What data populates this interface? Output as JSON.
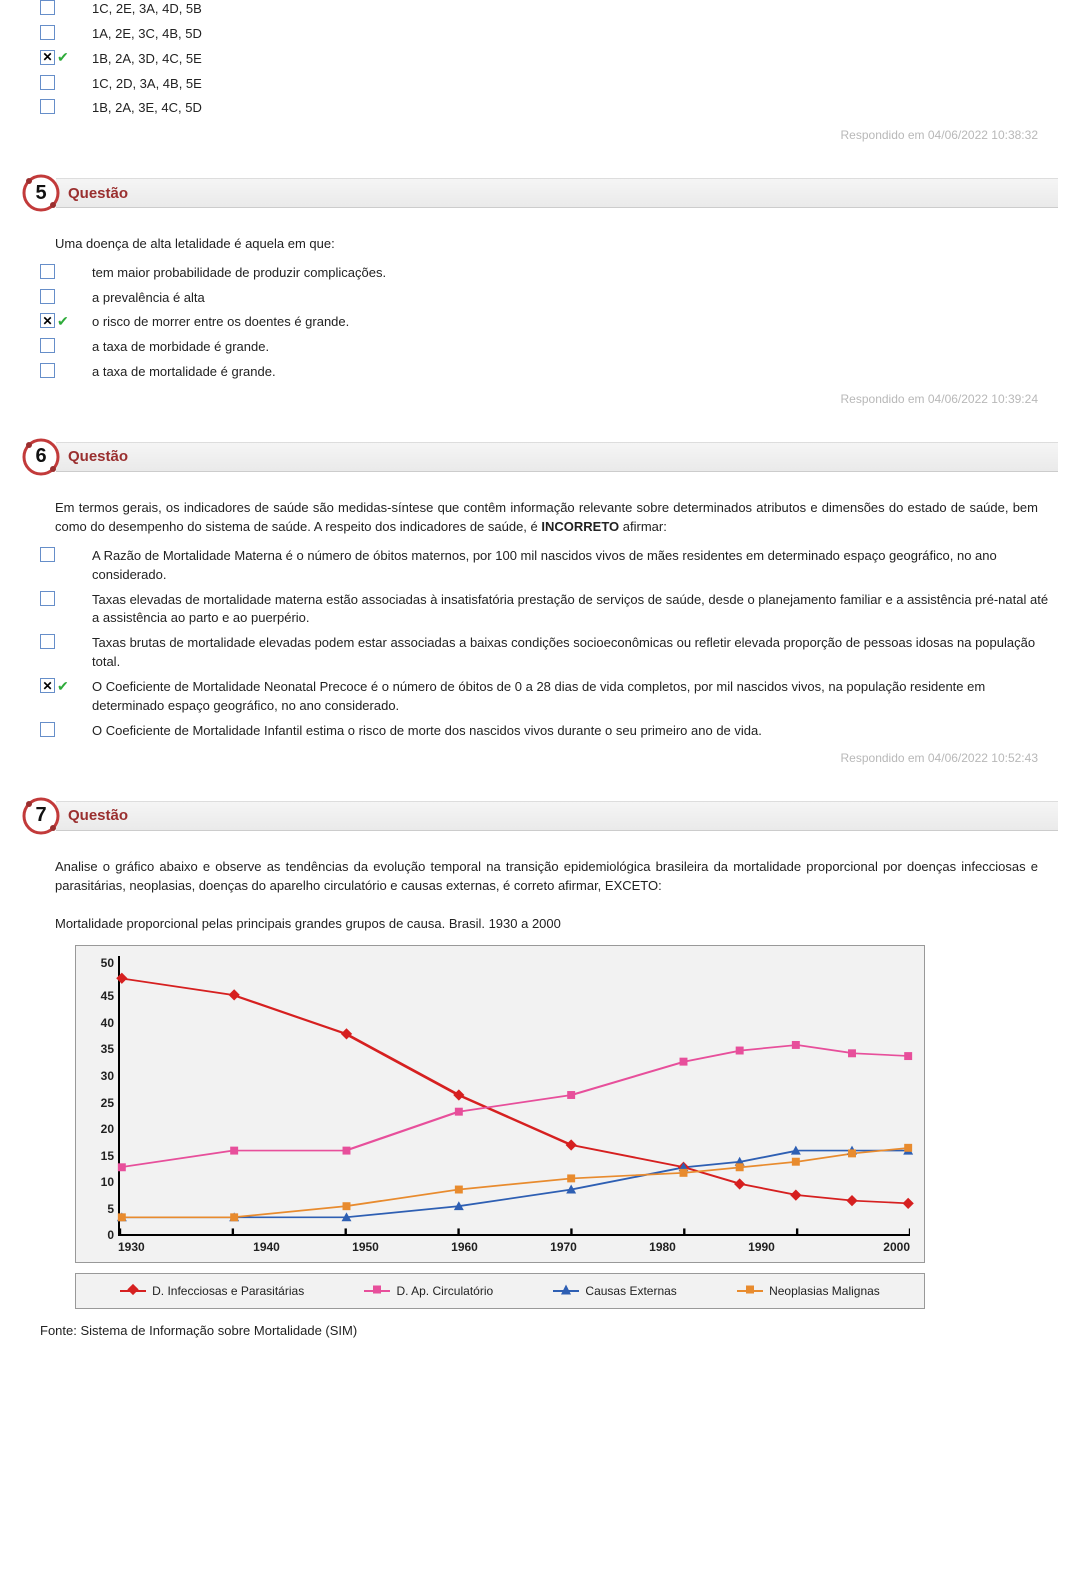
{
  "colors": {
    "checkbox_border": "#668ec9",
    "tick": "#2eab3a",
    "badge_ring": "#c23a3a",
    "badge_fill": "#ffffff",
    "badge_dots": "#9a2f2f",
    "bar_text": "#9a2f2f",
    "timestamp": "#b8b8b8",
    "chart_bg": "#f2f2f2",
    "series_red": "#d62020",
    "series_pink": "#e74f9b",
    "series_blue": "#2e5fb3",
    "series_orange": "#e88b2e"
  },
  "q4_tail": {
    "options": [
      {
        "text": "1C, 2E, 3A, 4D, 5B",
        "checked": false,
        "correct": false
      },
      {
        "text": "1A, 2E, 3C, 4B, 5D",
        "checked": false,
        "correct": false
      },
      {
        "text": "1B, 2A, 3D, 4C, 5E",
        "checked": true,
        "correct": true
      },
      {
        "text": "1C, 2D, 3A, 4B, 5E",
        "checked": false,
        "correct": false
      },
      {
        "text": "1B, 2A, 3E, 4C, 5D",
        "checked": false,
        "correct": false
      }
    ],
    "timestamp": "Respondido em 04/06/2022 10:38:32"
  },
  "q5": {
    "num": "5",
    "title": "Questão",
    "prompt": "Uma doença de alta letalidade é aquela em que:",
    "options": [
      {
        "text": "tem maior probabilidade de produzir complicações.",
        "checked": false,
        "correct": false
      },
      {
        "text": "a prevalência é alta",
        "checked": false,
        "correct": false
      },
      {
        "text": "o risco de morrer entre os doentes é grande.",
        "checked": true,
        "correct": true
      },
      {
        "text": "a taxa de morbidade é grande.",
        "checked": false,
        "correct": false
      },
      {
        "text": "a taxa de mortalidade é grande.",
        "checked": false,
        "correct": false
      }
    ],
    "timestamp": "Respondido em 04/06/2022 10:39:24"
  },
  "q6": {
    "num": "6",
    "title": "Questão",
    "prompt_html": "Em termos gerais, os indicadores de saúde são medidas-síntese que contêm informação relevante sobre determinados atributos e dimensões do estado de saúde, bem como do desempenho do sistema de saúde. A respeito dos indicadores de saúde, é <b>INCORRETO</b> afirmar:",
    "options": [
      {
        "text": "A Razão de Mortalidade Materna é o número de óbitos maternos, por 100 mil nascidos vivos de mães residentes em determinado espaço geográfico, no ano considerado.",
        "checked": false,
        "correct": false
      },
      {
        "text": "Taxas elevadas de mortalidade materna estão associadas à insatisfatória prestação de serviços de saúde, desde o planejamento familiar e a assistência pré-natal até a assistência ao parto e ao puerpério.",
        "checked": false,
        "correct": false
      },
      {
        "text": "Taxas brutas de mortalidade elevadas podem estar associadas a baixas condições socioeconômicas ou refletir elevada proporção de pessoas idosas na população total.",
        "checked": false,
        "correct": false
      },
      {
        "text": "O Coeficiente de Mortalidade Neonatal Precoce é o número de óbitos de 0 a 28 dias de vida completos, por mil nascidos vivos, na população residente em determinado espaço geográfico, no ano considerado.",
        "checked": true,
        "correct": true
      },
      {
        "text": "O Coeficiente de Mortalidade Infantil estima o risco de morte dos nascidos vivos durante o seu primeiro ano de vida.",
        "checked": false,
        "correct": false
      }
    ],
    "timestamp": "Respondido em 04/06/2022 10:52:43"
  },
  "q7": {
    "num": "7",
    "title": "Questão",
    "prompt": "Analise o gráfico abaixo e observe as tendências da evolução temporal na transição epidemiológica brasileira da mortalidade proporcional por doenças infecciosas e parasitárias, neoplasias, doenças do aparelho circulatório e causas externas, é correto afirmar, EXCETO:",
    "chart": {
      "title": "Mortalidade proporcional pelas principais grandes grupos de causa. Brasil. 1930 a 2000",
      "y_ticks": [
        50,
        45,
        40,
        35,
        30,
        25,
        20,
        15,
        10,
        5,
        0
      ],
      "x_ticks": [
        1930,
        1940,
        1950,
        1960,
        1970,
        1980,
        1990,
        2000
      ],
      "y_max": 50,
      "x_min": 1930,
      "x_max": 2000,
      "series": [
        {
          "name": "D. Infecciosas e Parasitárias",
          "color": "#d62020",
          "marker": "diamond",
          "points": [
            [
              1930,
              46
            ],
            [
              1940,
              43
            ],
            [
              1950,
              36
            ],
            [
              1960,
              25
            ],
            [
              1970,
              16
            ],
            [
              1980,
              12
            ],
            [
              1985,
              9
            ],
            [
              1990,
              7
            ],
            [
              1995,
              6
            ],
            [
              2000,
              5.5
            ]
          ]
        },
        {
          "name": "D. Ap. Circulatório",
          "color": "#e74f9b",
          "marker": "square",
          "points": [
            [
              1930,
              12
            ],
            [
              1940,
              15
            ],
            [
              1950,
              15
            ],
            [
              1960,
              22
            ],
            [
              1970,
              25
            ],
            [
              1980,
              31
            ],
            [
              1985,
              33
            ],
            [
              1990,
              34
            ],
            [
              1995,
              32.5
            ],
            [
              2000,
              32
            ]
          ]
        },
        {
          "name": "Causas Externas",
          "color": "#2e5fb3",
          "marker": "triangle",
          "points": [
            [
              1930,
              3
            ],
            [
              1940,
              3
            ],
            [
              1950,
              3
            ],
            [
              1960,
              5
            ],
            [
              1970,
              8
            ],
            [
              1980,
              12
            ],
            [
              1985,
              13
            ],
            [
              1990,
              15
            ],
            [
              1995,
              15
            ],
            [
              2000,
              15
            ]
          ]
        },
        {
          "name": "Neoplasias Malignas",
          "color": "#e88b2e",
          "marker": "square",
          "points": [
            [
              1930,
              3
            ],
            [
              1940,
              3
            ],
            [
              1950,
              5
            ],
            [
              1960,
              8
            ],
            [
              1970,
              10
            ],
            [
              1980,
              11
            ],
            [
              1985,
              12
            ],
            [
              1990,
              13
            ],
            [
              1995,
              14.5
            ],
            [
              2000,
              15.5
            ]
          ]
        }
      ],
      "source": "Fonte: Sistema de Informação sobre Mortalidade (SIM)"
    }
  }
}
